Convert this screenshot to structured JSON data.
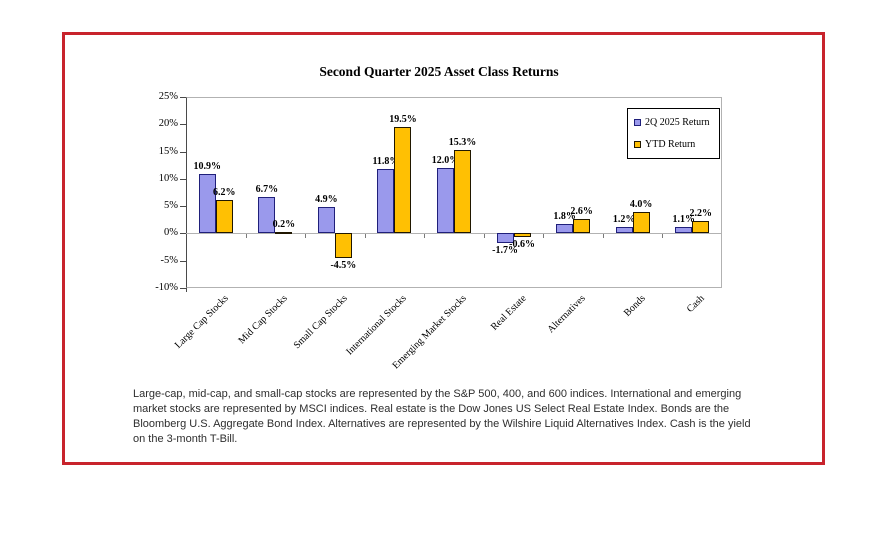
{
  "frame": {
    "border_color": "#c8232c"
  },
  "chart_data": {
    "type": "bar",
    "title": "Second Quarter 2025 Asset Class Returns",
    "categories": [
      "Large Cap Stocks",
      "Mid Cap Stocks",
      "Small Cap Stocks",
      "International Stocks",
      "Emerging Market Stocks",
      "Real Estate",
      "Alternatives",
      "Bonds",
      "Cash"
    ],
    "series": [
      {
        "name": "2Q 2025 Return",
        "color": "#9a99ec",
        "border_color": "#1f1f7a",
        "values": [
          10.9,
          6.7,
          4.9,
          11.8,
          12.0,
          -1.7,
          1.8,
          1.2,
          1.1
        ]
      },
      {
        "name": "YTD Return",
        "color": "#ffc003",
        "border_color": "#201700",
        "values": [
          6.2,
          0.2,
          -4.5,
          19.5,
          15.3,
          -0.6,
          2.6,
          4.0,
          2.2
        ]
      }
    ],
    "value_label_suffix": "%",
    "ylim": [
      -10,
      25
    ],
    "y_axis_ticks": [
      "25%",
      "20%",
      "15%",
      "10%",
      "5%",
      "0%",
      "-5%",
      "-10%"
    ],
    "grid": false,
    "legend_position": "top-right",
    "plot_background": "#ffffff"
  },
  "footnote": "Large-cap, mid-cap, and small-cap stocks are represented by the S&P 500, 400, and 600 indices. International and emerging market stocks are represented by MSCI indices. Real estate is the Dow Jones US Select Real Estate Index. Bonds are the Bloomberg U.S. Aggregate Bond Index. Alternatives are represented by the Wilshire Liquid Alternatives Index. Cash is the yield on the 3-month T-Bill."
}
